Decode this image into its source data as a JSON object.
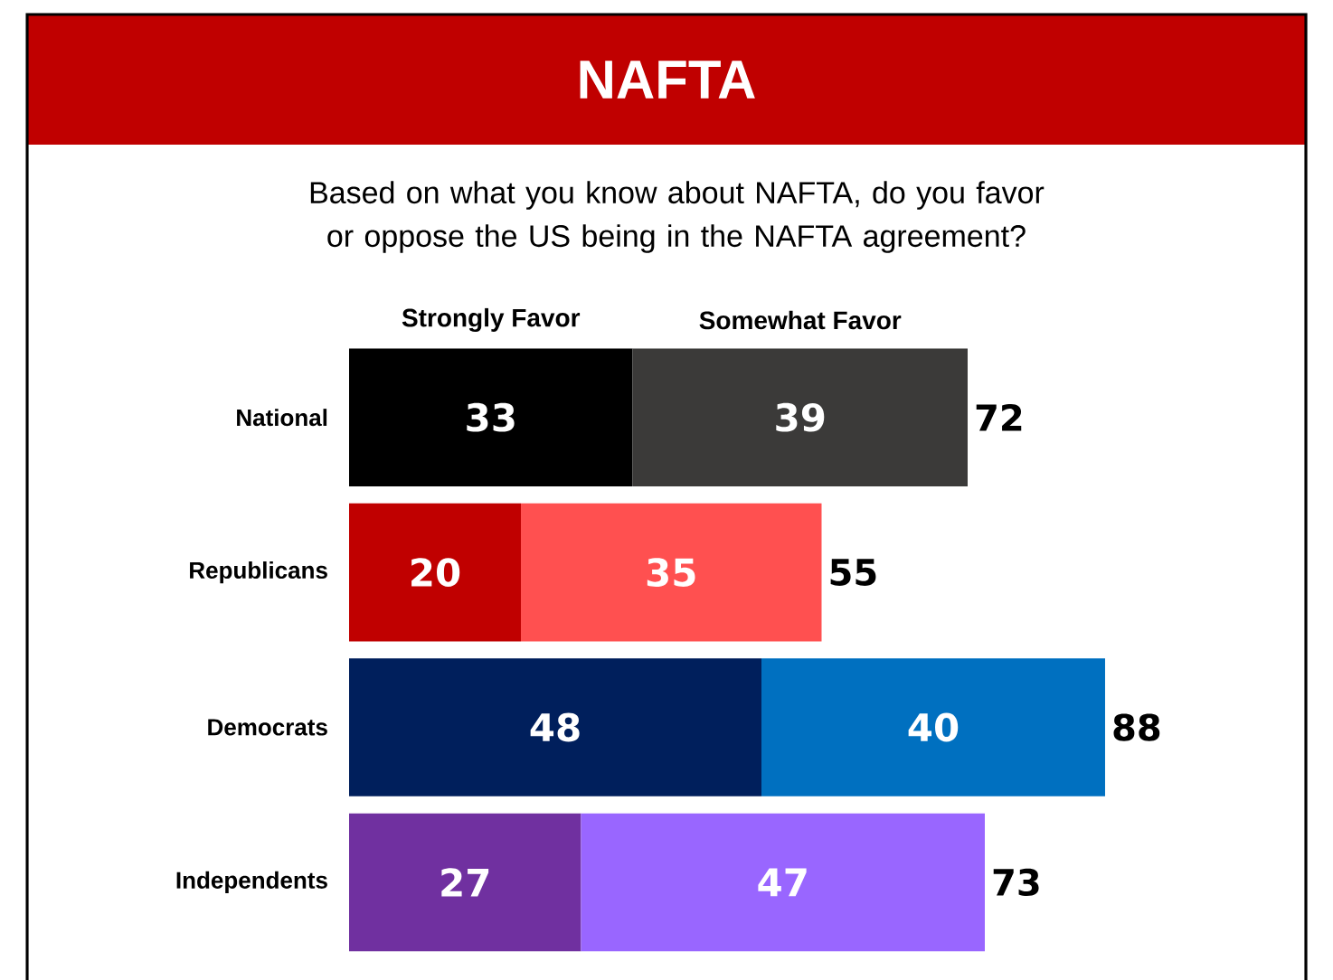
{
  "chart_data": {
    "type": "bar",
    "orientation": "horizontal",
    "stacked": true,
    "title": "NAFTA",
    "subtitle": "Based on what you know about NAFTA, do you favor or oppose the US being in the NAFTA agreement?",
    "categories": [
      "National",
      "Republicans",
      "Democrats",
      "Independents"
    ],
    "series": [
      {
        "name": "Strongly Favor",
        "values": [
          33,
          20,
          48,
          27
        ],
        "colors": [
          "#000000",
          "#c00000",
          "#001f5c",
          "#7030a0"
        ]
      },
      {
        "name": "Somewhat Favor",
        "values": [
          39,
          35,
          40,
          47
        ],
        "colors": [
          "#3b3a39",
          "#ff5050",
          "#0070c0",
          "#9966ff"
        ]
      }
    ],
    "totals": [
      "72",
      "55",
      "88",
      "73"
    ],
    "data_labels": true,
    "tick_labels": "y"
  }
}
